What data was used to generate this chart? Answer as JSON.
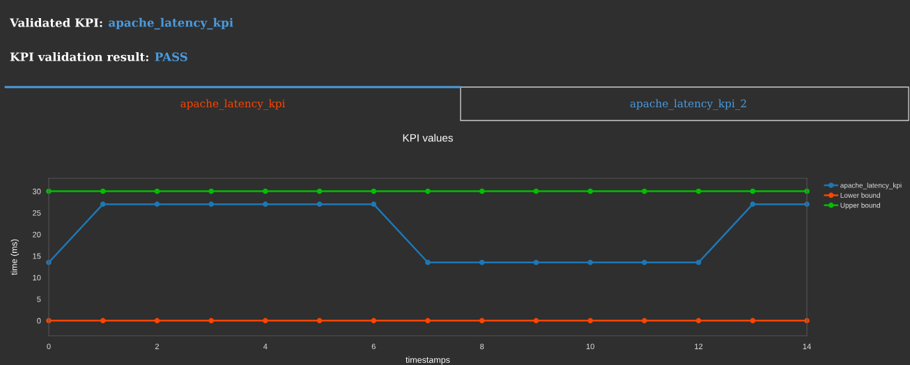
{
  "chart_data": {
    "type": "line",
    "title": "KPI values",
    "xlabel": "timestamps",
    "ylabel": "time (ms)",
    "x": [
      0,
      1,
      2,
      3,
      4,
      5,
      6,
      7,
      8,
      9,
      10,
      11,
      12,
      13,
      14
    ],
    "series": [
      {
        "name": "apache_latency_kpi",
        "color": "#1f77b4",
        "values": [
          13.5,
          27,
          27,
          27,
          27,
          27,
          27,
          13.5,
          13.5,
          13.5,
          13.5,
          13.5,
          13.5,
          27,
          27
        ]
      },
      {
        "name": "Lower bound",
        "color": "#ff4500",
        "values": [
          0,
          0,
          0,
          0,
          0,
          0,
          0,
          0,
          0,
          0,
          0,
          0,
          0,
          0,
          0
        ]
      },
      {
        "name": "Upper bound",
        "color": "#00c000",
        "values": [
          30,
          30,
          30,
          30,
          30,
          30,
          30,
          30,
          30,
          30,
          30,
          30,
          30,
          30,
          30
        ]
      }
    ],
    "xlim": [
      0,
      14
    ],
    "xticks": [
      0,
      2,
      4,
      6,
      8,
      10,
      12,
      14
    ],
    "ylim": [
      -3.5,
      33
    ],
    "yticks": [
      0,
      5,
      10,
      15,
      20,
      25,
      30
    ],
    "grid": false,
    "legend": "top right",
    "marker": "circle",
    "line_style": "solid",
    "annotations": [
      "Validated KPI:",
      "apache_latency_kpi",
      "KPI validation result:",
      "PASS",
      "apache_latency_kpi",
      "apache_latency_kpi_2"
    ]
  }
}
